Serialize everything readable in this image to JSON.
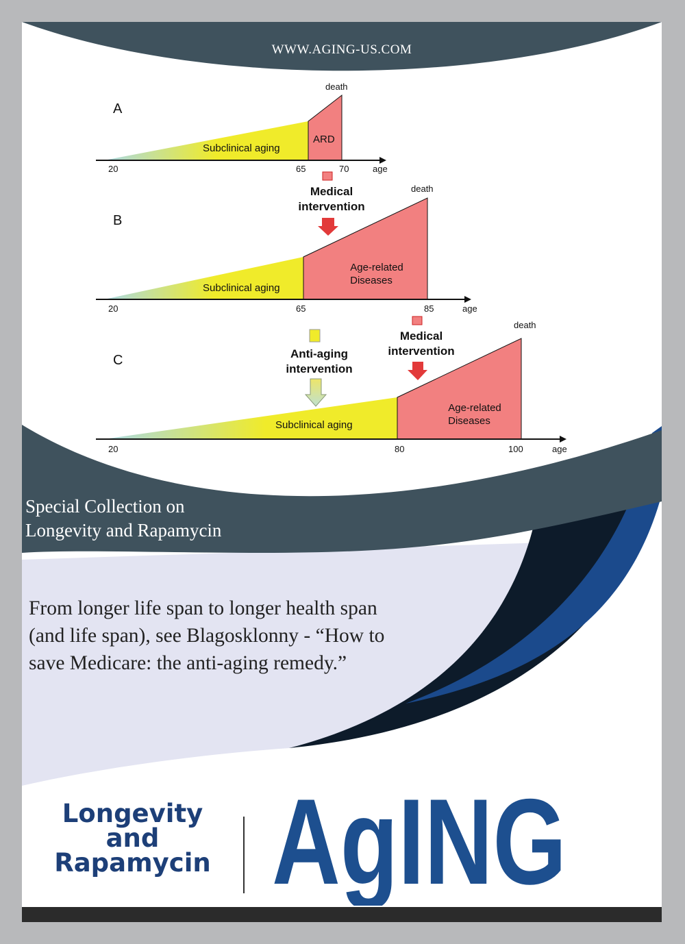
{
  "header": {
    "website": "WWW.AGING-US.COM"
  },
  "figure": {
    "panel_a": {
      "letter": "A",
      "death_label": "death",
      "aging_label": "Subclinical aging",
      "disease_label": "ARD",
      "ticks": [
        "20",
        "65",
        "70"
      ],
      "axis_label": "age"
    },
    "medical_intervention_1": {
      "line1": "Medical",
      "line2": "intervention"
    },
    "panel_b": {
      "letter": "B",
      "death_label": "death",
      "aging_label": "Subclinical aging",
      "disease_line1": "Age-related",
      "disease_line2": "Diseases",
      "ticks": [
        "20",
        "65",
        "85"
      ],
      "axis_label": "age"
    },
    "anti_aging_intervention": {
      "line1": "Anti-aging",
      "line2": "intervention"
    },
    "medical_intervention_2": {
      "line1": "Medical",
      "line2": "intervention"
    },
    "panel_c": {
      "letter": "C",
      "death_label": "death",
      "aging_label": "Subclinical aging",
      "disease_line1": "Age-related",
      "disease_line2": "Diseases",
      "ticks": [
        "20",
        "80",
        "100"
      ],
      "axis_label": "age"
    }
  },
  "collection": {
    "line1": "Special Collection on",
    "line2": "Longevity and Rapamycin"
  },
  "description": "From longer life span to longer health span (and life span), see Blagosklonny - “How to save Medicare: the anti-aging remedy.”",
  "footer": {
    "topic_line1": "Longevity",
    "topic_line2": "and",
    "topic_line3": "Rapamycin",
    "logo_text": "AgING"
  },
  "colors": {
    "frame": "#b8b9bb",
    "dark_slate": "#3f525d",
    "navy_swoosh": "#0d1b2a",
    "blue_swoosh": "#1b4a8c",
    "lavender": "#e3e4f2",
    "disease_red": "#f28080",
    "aging_yellow": "#f0eb2a",
    "aging_teal": "#a9d8e6",
    "logo_blue": "#1d4f8f"
  }
}
